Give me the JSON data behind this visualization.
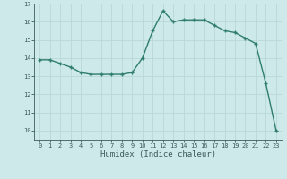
{
  "x": [
    0,
    1,
    2,
    3,
    4,
    5,
    6,
    7,
    8,
    9,
    10,
    11,
    12,
    13,
    14,
    15,
    16,
    17,
    18,
    19,
    20,
    21,
    22,
    23
  ],
  "y": [
    13.9,
    13.9,
    13.7,
    13.5,
    13.2,
    13.1,
    13.1,
    13.1,
    13.1,
    13.2,
    14.0,
    15.5,
    16.6,
    16.0,
    16.1,
    16.1,
    16.1,
    15.8,
    15.5,
    15.4,
    15.1,
    14.8,
    12.6,
    10.0
  ],
  "ylim": [
    9.5,
    17.0
  ],
  "yticks": [
    10,
    11,
    12,
    13,
    14,
    15,
    16,
    17
  ],
  "xticks": [
    0,
    1,
    2,
    3,
    4,
    5,
    6,
    7,
    8,
    9,
    10,
    11,
    12,
    13,
    14,
    15,
    16,
    17,
    18,
    19,
    20,
    21,
    22,
    23
  ],
  "xlabel": "Humidex (Indice chaleur)",
  "line_color": "#2e7d6e",
  "marker": "+",
  "marker_size": 3,
  "marker_lw": 1.0,
  "line_width": 1.0,
  "background_color": "#cee9ea",
  "grid_color": "#b8d8da",
  "tick_color": "#3a5a5a",
  "xlabel_fontsize": 6.5,
  "tick_fontsize": 5.0
}
